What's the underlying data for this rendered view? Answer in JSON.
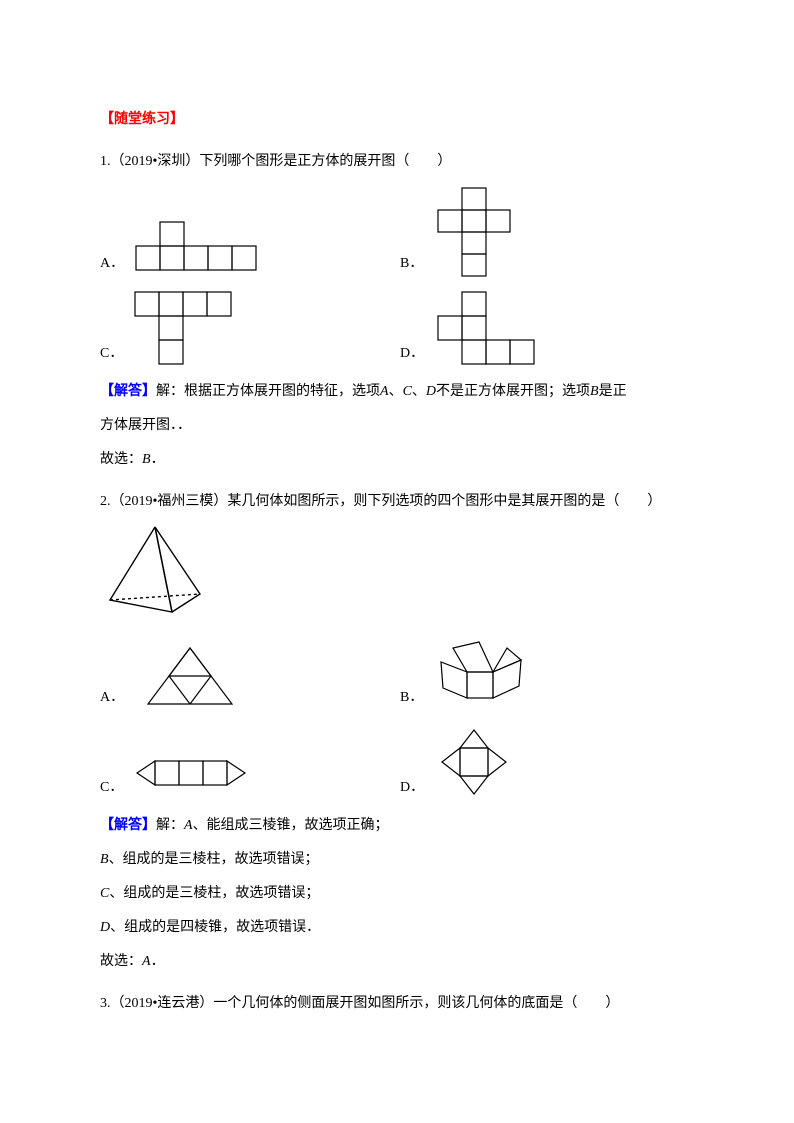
{
  "section_title": "【随堂练习】",
  "q1": {
    "text": "1.（2019•深圳）下列哪个图形是正方体的展开图（　　）",
    "A": "A．",
    "B": "B．",
    "C": "C．",
    "D": "D．",
    "solution_label": "【解答】",
    "solution_text1": "解：根据正方体展开图的特征，选项",
    "solution_text2": "、",
    "solution_text3": "、",
    "solution_text4": "不是正方体展开图；选项",
    "solution_text5": "是正",
    "solution_text6": "方体展开图．．",
    "conclusion": "故选：",
    "answer": "B",
    "period": "．"
  },
  "q2": {
    "text": "2.（2019•福州三模）某几何体如图所示，则下列选项的四个图形中是其展开图的是（　　）",
    "A": "A．",
    "B": "B．",
    "C": "C．",
    "D": "D．",
    "solution_label": "【解答】",
    "sol_a": "解：",
    "sol_a_letter": "A",
    "sol_a_text": "、能组成三棱锥，故选项正确；",
    "sol_b_letter": "B",
    "sol_b_text": "、组成的是三棱柱，故选项错误；",
    "sol_c_letter": "C",
    "sol_c_text": "、组成的是三棱柱，故选项错误；",
    "sol_d_letter": "D",
    "sol_d_text": "、组成的是四棱锥，故选项错误．",
    "conclusion": "故选：",
    "answer": "A",
    "period": "．"
  },
  "q3": {
    "text": "3.（2019•连云港）一个几何体的侧面展开图如图所示，则该几何体的底面是（　　）"
  },
  "colors": {
    "stroke": "#000000",
    "red": "#ff0000",
    "blue": "#0000ff"
  }
}
